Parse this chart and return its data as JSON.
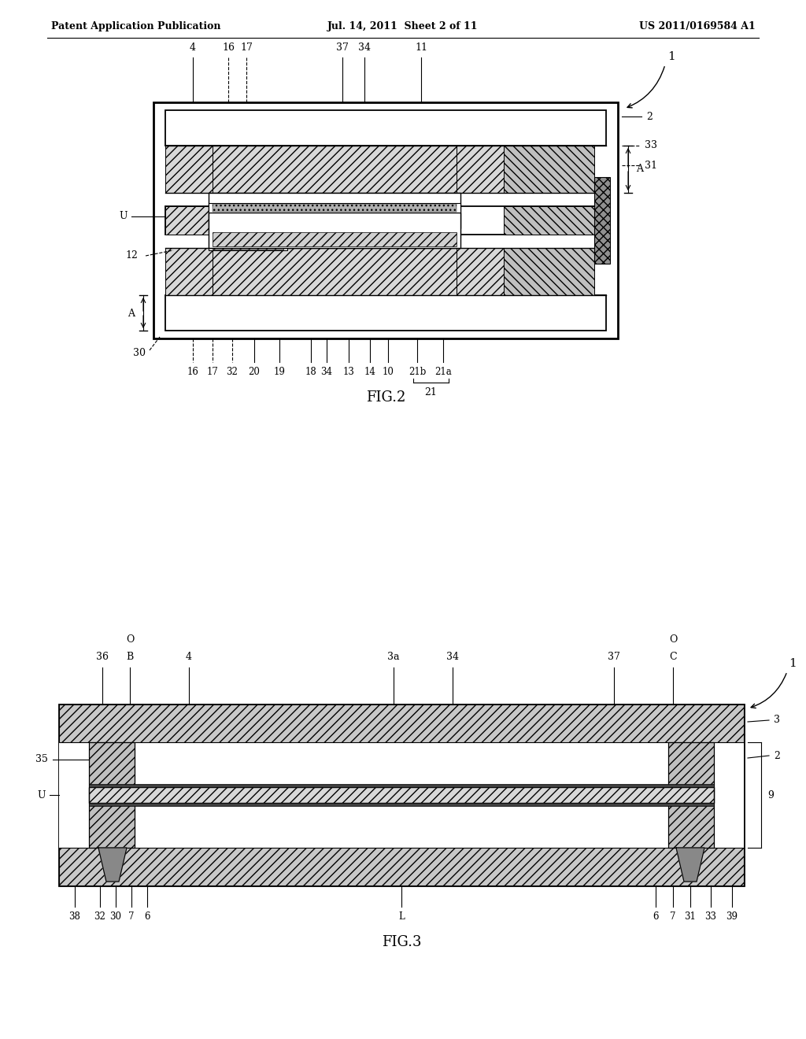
{
  "bg_color": "#ffffff",
  "header_left": "Patent Application Publication",
  "header_center": "Jul. 14, 2011  Sheet 2 of 11",
  "header_right": "US 2011/0169584 A1",
  "fig2_label": "FIG.2",
  "fig3_label": "FIG.3"
}
